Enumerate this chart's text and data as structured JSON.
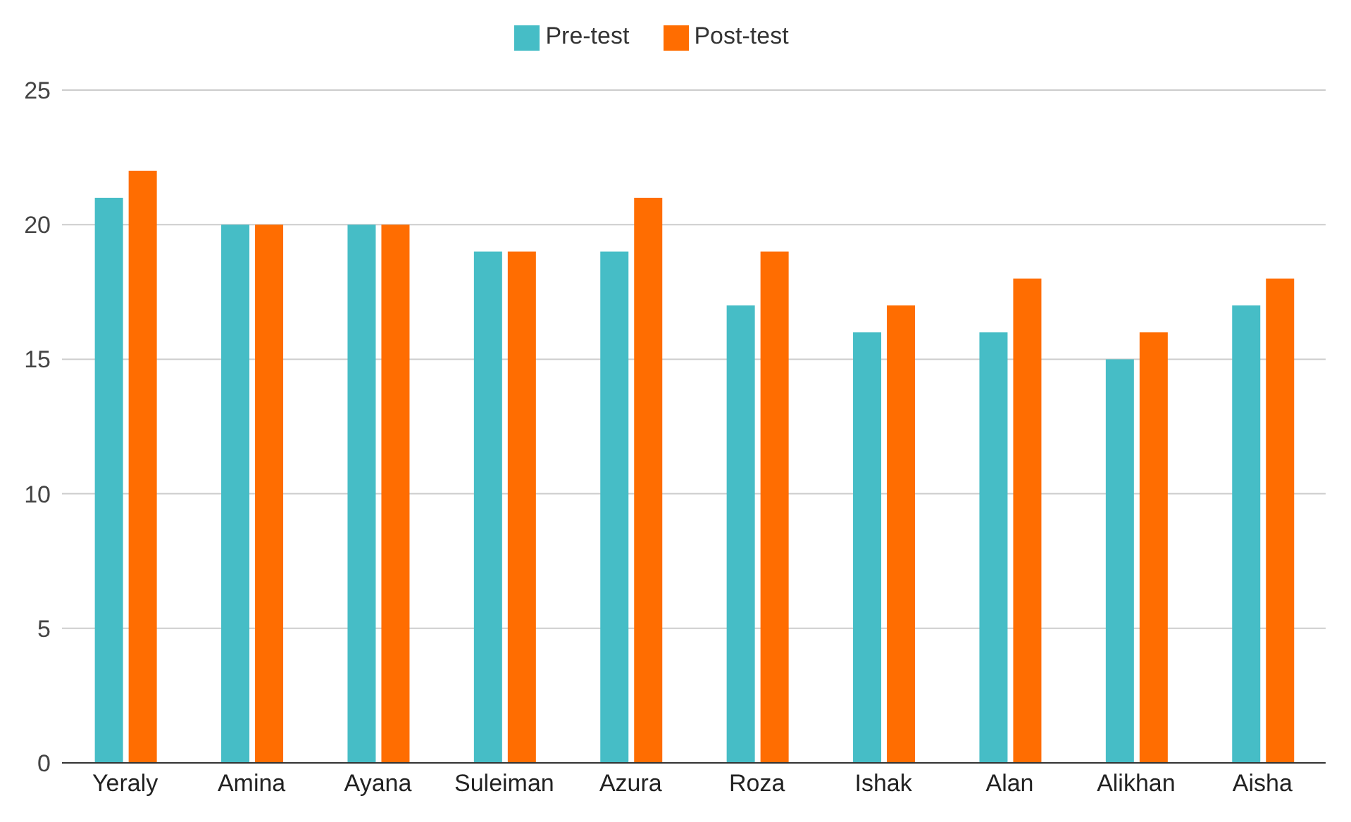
{
  "chart_data": {
    "type": "bar",
    "categories": [
      "Yeraly",
      "Amina",
      "Ayana",
      "Suleiman",
      "Azura",
      "Roza",
      "Ishak",
      "Alan",
      "Alikhan",
      "Aisha"
    ],
    "series": [
      {
        "name": "Pre-test",
        "color": "#46bdc6",
        "values": [
          21,
          20,
          20,
          19,
          19,
          17,
          16,
          16,
          15,
          17
        ]
      },
      {
        "name": "Post-test",
        "color": "#ff6d01",
        "values": [
          22,
          20,
          20,
          19,
          21,
          19,
          17,
          18,
          16,
          18
        ]
      }
    ],
    "ylim": [
      0,
      25
    ],
    "yticks": [
      0,
      5,
      10,
      15,
      20,
      25
    ],
    "grid": "y",
    "legend": "top"
  }
}
